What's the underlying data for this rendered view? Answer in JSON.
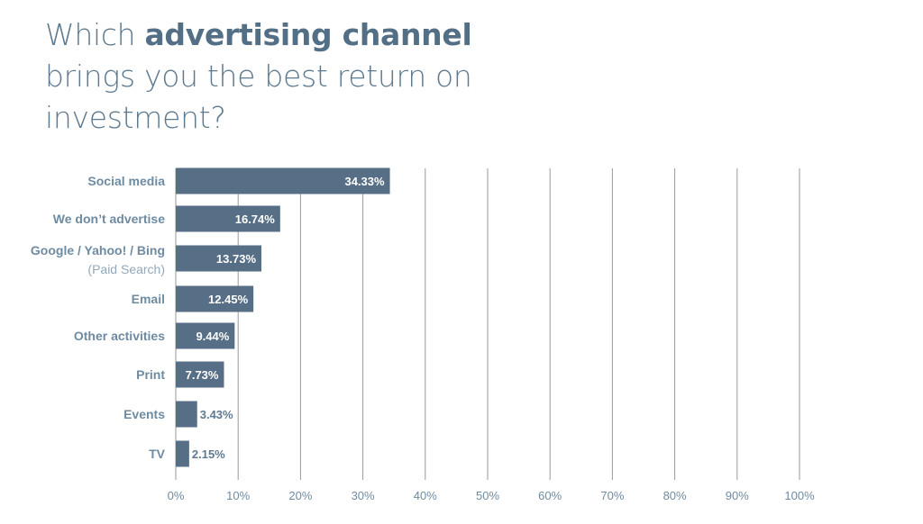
{
  "title": {
    "prefix": "Which ",
    "emphasis": "advertising channel",
    "suffix": " brings you the best return on investment?"
  },
  "colors": {
    "bar": "#566f86",
    "grid": "#9a9a9a",
    "label": "#6f8ba1"
  },
  "chart_data": {
    "type": "bar",
    "orientation": "horizontal",
    "categories": [
      "Social media",
      "We don’t advertise",
      "Google / Yahoo! / Bing",
      "Email",
      "Other activities",
      "Print",
      "Events",
      "TV"
    ],
    "category_sublabels": [
      "",
      "",
      "(Paid Search)",
      "",
      "",
      "",
      "",
      ""
    ],
    "values": [
      34.33,
      16.74,
      13.73,
      12.45,
      9.44,
      7.73,
      3.43,
      2.15
    ],
    "value_labels": [
      "34.33%",
      "16.74%",
      "13.73%",
      "12.45%",
      "9.44%",
      "7.73%",
      "3.43%",
      "2.15%"
    ],
    "xlim": [
      0,
      100
    ],
    "xticks": [
      0,
      10,
      20,
      30,
      40,
      50,
      60,
      70,
      80,
      90,
      100
    ],
    "xtick_labels": [
      "0%",
      "10%",
      "20%",
      "30%",
      "40%",
      "50%",
      "60%",
      "70%",
      "80%",
      "90%",
      "100%"
    ],
    "xlabel": "",
    "ylabel": "",
    "grid": "vertical"
  }
}
